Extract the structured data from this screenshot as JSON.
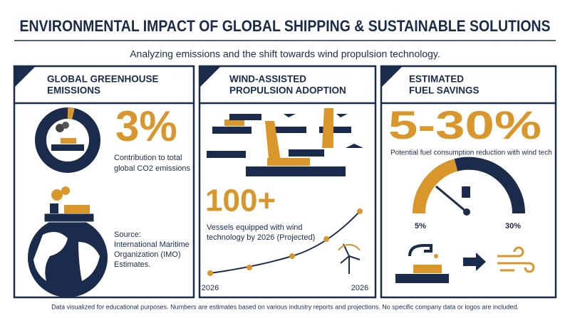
{
  "header": {
    "title": "ENVIRONMENTAL IMPACT OF GLOBAL SHIPPING & SUSTAINABLE SOLUTIONS",
    "subtitle": "Analyzing emissions and the shift towards wind propulsion technology."
  },
  "panels": [
    {
      "title_lines": [
        "GLOBAL GREENHOUSE",
        "EMISSIONS"
      ],
      "stat": "3%",
      "description_lines": [
        "Contribution to total",
        "global CO2 emissions"
      ],
      "source_lines": [
        "Source:",
        "International Maritime",
        "Organization (IMO)",
        "Estimates."
      ]
    },
    {
      "title_lines": [
        "WIND-ASSISTED",
        "PROPULSION ADOPTION"
      ],
      "stat": "100+",
      "description_lines": [
        "Vessels equipped with wind",
        "technology by 2026 (Projected)"
      ],
      "axis_labels": [
        "2026",
        "2026"
      ]
    },
    {
      "title_lines": [
        "ESTIMATED",
        "FUEL SAVINGS"
      ],
      "stat": "5-30%",
      "description_lines": [
        "Potential fuel consumption reduction with wind tech"
      ],
      "gauge_labels": [
        "5%",
        "30%"
      ]
    }
  ],
  "footer": "Data visualized for educational purposes. Numbers are estimates based on various industry reports and projections. No specific company data or logos are included."
}
